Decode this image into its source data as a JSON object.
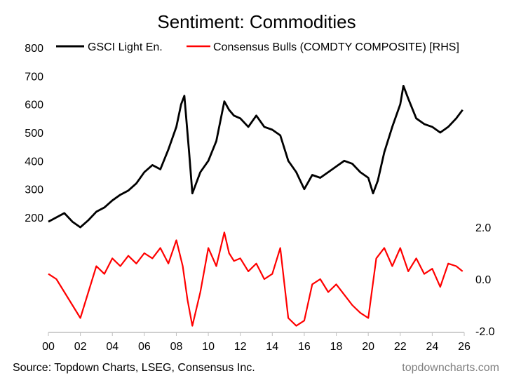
{
  "chart_data": {
    "type": "line",
    "title": "Sentiment: Commodities",
    "source": "Source: Topdown Charts, LSEG, Consensus Inc.",
    "watermark": "topdowncharts.com",
    "x_ticks": [
      "00",
      "02",
      "04",
      "06",
      "08",
      "10",
      "12",
      "14",
      "16",
      "18",
      "20",
      "22",
      "24",
      "26"
    ],
    "xlim": [
      2000,
      2026
    ],
    "left_axis": {
      "ticks": [
        "800",
        "700",
        "600",
        "500",
        "400",
        "300",
        "200"
      ],
      "ylim": [
        200,
        800
      ]
    },
    "right_axis": {
      "ticks": [
        "2.0",
        "0.0",
        "-2.0"
      ],
      "ylim": [
        -2.0,
        2.0
      ]
    },
    "grid": false,
    "legend_position": "top",
    "series": [
      {
        "name": "GSCI Light En.",
        "color": "#000000",
        "axis": "left",
        "x": [
          2000,
          2000.5,
          2001,
          2001.5,
          2002,
          2002.5,
          2003,
          2003.5,
          2004,
          2004.5,
          2005,
          2005.5,
          2006,
          2006.5,
          2007,
          2007.5,
          2008,
          2008.3,
          2008.5,
          2008.8,
          2009.0,
          2009.5,
          2010,
          2010.5,
          2011.0,
          2011.3,
          2011.6,
          2012,
          2012.5,
          2013,
          2013.5,
          2014,
          2014.5,
          2015,
          2015.5,
          2016,
          2016.5,
          2017,
          2017.5,
          2018,
          2018.5,
          2019,
          2019.5,
          2020,
          2020.3,
          2020.6,
          2021,
          2021.5,
          2022,
          2022.2,
          2022.5,
          2023,
          2023.5,
          2024,
          2024.5,
          2025,
          2025.5,
          2025.9
        ],
        "values": [
          185,
          200,
          215,
          185,
          165,
          190,
          220,
          235,
          260,
          280,
          295,
          320,
          360,
          385,
          370,
          440,
          520,
          600,
          630,
          430,
          285,
          360,
          400,
          470,
          610,
          580,
          560,
          550,
          520,
          560,
          520,
          510,
          490,
          400,
          360,
          300,
          350,
          340,
          360,
          380,
          400,
          390,
          360,
          340,
          285,
          330,
          430,
          520,
          600,
          665,
          620,
          550,
          530,
          520,
          500,
          520,
          550,
          580
        ]
      },
      {
        "name": "Consensus Bulls (COMDTY COMPOSITE) [RHS]",
        "color": "#ff0000",
        "axis": "right",
        "x": [
          2000,
          2000.5,
          2001,
          2001.5,
          2002,
          2002.5,
          2003,
          2003.5,
          2004,
          2004.5,
          2005,
          2005.5,
          2006,
          2006.5,
          2007,
          2007.5,
          2008,
          2008.4,
          2008.7,
          2009.0,
          2009.5,
          2010,
          2010.5,
          2011.0,
          2011.3,
          2011.6,
          2012,
          2012.5,
          2013,
          2013.5,
          2014,
          2014.5,
          2015,
          2015.5,
          2016,
          2016.5,
          2017,
          2017.5,
          2018,
          2018.5,
          2019,
          2019.5,
          2020,
          2020.5,
          2021,
          2021.5,
          2022,
          2022.5,
          2023,
          2023.5,
          2024,
          2024.5,
          2025,
          2025.5,
          2025.9
        ],
        "values": [
          0.2,
          0.0,
          -0.5,
          -1.0,
          -1.5,
          -0.5,
          0.5,
          0.2,
          0.8,
          0.5,
          0.9,
          0.6,
          1.0,
          0.8,
          1.2,
          0.6,
          1.5,
          0.5,
          -0.8,
          -1.8,
          -0.5,
          1.2,
          0.5,
          1.8,
          1.0,
          0.7,
          0.8,
          0.3,
          0.6,
          0.0,
          0.2,
          1.2,
          -1.5,
          -1.8,
          -1.6,
          -0.2,
          0.0,
          -0.5,
          -0.2,
          -0.6,
          -1.0,
          -1.3,
          -1.5,
          0.8,
          1.2,
          0.5,
          1.2,
          0.3,
          0.8,
          0.2,
          0.4,
          -0.3,
          0.6,
          0.5,
          0.3
        ]
      }
    ]
  }
}
